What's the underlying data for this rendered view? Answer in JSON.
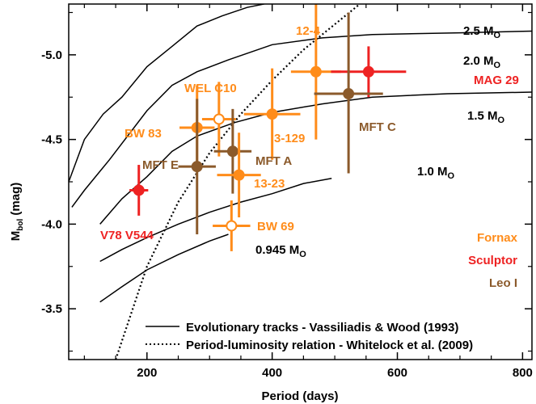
{
  "chart_data": {
    "type": "scatter",
    "xlabel": "Period (days)",
    "ylabel": "Mbol (mag)",
    "ylabel_main": "M",
    "ylabel_sub": "bol",
    "ylabel_rest": " (mag)",
    "xlim": [
      75,
      815
    ],
    "ylim": [
      -3.2,
      -5.3
    ],
    "xticks": [
      200,
      400,
      600,
      800
    ],
    "xtick_labels": [
      "200",
      "400",
      "600",
      "800"
    ],
    "yticks": [
      -3.5,
      -4.0,
      -4.5,
      -5.0
    ],
    "ytick_labels": [
      "-3.5",
      "-4.0",
      "-4.5",
      "-5.0"
    ],
    "colors": {
      "Fornax": "#ff8c1a",
      "Sculptor": "#ee2222",
      "Leo I": "#8b5a2b"
    },
    "galaxy_legend": [
      "Fornax",
      "Sculptor",
      "Leo I"
    ],
    "points": [
      {
        "label": "12-4",
        "galaxy": "Fornax",
        "period": 470,
        "mbol": -4.9,
        "xerr": 40,
        "yerr_up": 0.4,
        "yerr_down": 0.4,
        "filled": true
      },
      {
        "label": "MAG 29",
        "galaxy": "Sculptor",
        "period": 554,
        "mbol": -4.9,
        "xerr": 60,
        "yerr_up": 0.15,
        "yerr_down": 0.15,
        "filled": true
      },
      {
        "label": "MFT C",
        "galaxy": "Leo I",
        "period": 522,
        "mbol": -4.77,
        "xerr": 55,
        "yerr_up": 0.48,
        "yerr_down": 0.47,
        "filled": true
      },
      {
        "label": "3-129",
        "galaxy": "Fornax",
        "period": 400,
        "mbol": -4.65,
        "xerr": 45,
        "yerr_up": 0.27,
        "yerr_down": 0.27,
        "filled": true
      },
      {
        "label": "WEL C10",
        "galaxy": "Fornax",
        "period": 315,
        "mbol": -4.62,
        "xerr": 27,
        "yerr_up": 0.22,
        "yerr_down": 0.22,
        "filled": false
      },
      {
        "label": "BW 83",
        "galaxy": "Fornax",
        "period": 280,
        "mbol": -4.57,
        "xerr": 28,
        "yerr_up": 0.25,
        "yerr_down": 0.25,
        "filled": true
      },
      {
        "label": "MFT A",
        "galaxy": "Leo I",
        "period": 337,
        "mbol": -4.43,
        "xerr": 30,
        "yerr_up": 0.25,
        "yerr_down": 0.25,
        "filled": true
      },
      {
        "label": "MFT E",
        "galaxy": "Leo I",
        "period": 280,
        "mbol": -4.34,
        "xerr": 30,
        "yerr_up": 0.4,
        "yerr_down": 0.4,
        "filled": true
      },
      {
        "label": "13-23",
        "galaxy": "Fornax",
        "period": 347,
        "mbol": -4.29,
        "xerr": 35,
        "yerr_up": 0.25,
        "yerr_down": 0.25,
        "filled": true
      },
      {
        "label": "BW 69",
        "galaxy": "Fornax",
        "period": 335,
        "mbol": -3.99,
        "xerr": 30,
        "yerr_up": 0.15,
        "yerr_down": 0.15,
        "filled": false
      },
      {
        "label": "V78 V544",
        "galaxy": "Sculptor",
        "period": 187,
        "mbol": -4.2,
        "xerr": 15,
        "yerr_up": 0.15,
        "yerr_down": 0.15,
        "filled": true
      }
    ],
    "tracks": [
      {
        "label_main": "2.5 M",
        "label_sub": "O",
        "points": [
          [
            75,
            -4.25
          ],
          [
            100,
            -4.5
          ],
          [
            130,
            -4.65
          ],
          [
            160,
            -4.75
          ],
          [
            200,
            -4.93
          ],
          [
            240,
            -5.05
          ],
          [
            280,
            -5.17
          ],
          [
            320,
            -5.23
          ],
          [
            360,
            -5.28
          ],
          [
            400,
            -5.31
          ],
          [
            460,
            -5.32
          ],
          [
            560,
            -5.32
          ],
          [
            700,
            -5.32
          ],
          [
            815,
            -5.32
          ]
        ]
      },
      {
        "label_main": "2.0 M",
        "label_sub": "O",
        "points": [
          [
            80,
            -4.1
          ],
          [
            100,
            -4.2
          ],
          [
            140,
            -4.38
          ],
          [
            200,
            -4.67
          ],
          [
            240,
            -4.82
          ],
          [
            280,
            -4.9
          ],
          [
            330,
            -4.97
          ],
          [
            400,
            -5.06
          ],
          [
            480,
            -5.1
          ],
          [
            560,
            -5.12
          ],
          [
            700,
            -5.13
          ],
          [
            815,
            -5.14
          ]
        ]
      },
      {
        "label_main": "1.5 M",
        "label_sub": "O",
        "points": [
          [
            125,
            -4.0
          ],
          [
            160,
            -4.15
          ],
          [
            200,
            -4.28
          ],
          [
            240,
            -4.43
          ],
          [
            280,
            -4.52
          ],
          [
            340,
            -4.6
          ],
          [
            400,
            -4.66
          ],
          [
            480,
            -4.71
          ],
          [
            560,
            -4.75
          ],
          [
            680,
            -4.77
          ],
          [
            815,
            -4.78
          ]
        ]
      },
      {
        "label_main": "1.0 M",
        "label_sub": "O",
        "points": [
          [
            125,
            -3.78
          ],
          [
            160,
            -3.85
          ],
          [
            200,
            -3.92
          ],
          [
            250,
            -4.0
          ],
          [
            300,
            -4.07
          ],
          [
            350,
            -4.13
          ],
          [
            400,
            -4.18
          ],
          [
            450,
            -4.24
          ],
          [
            495,
            -4.27
          ]
        ]
      },
      {
        "label_main": "0.945 M",
        "label_sub": "O",
        "points": [
          [
            125,
            -3.54
          ],
          [
            160,
            -3.63
          ],
          [
            200,
            -3.73
          ],
          [
            250,
            -3.82
          ],
          [
            300,
            -3.9
          ],
          [
            330,
            -3.94
          ]
        ]
      }
    ],
    "pl_relation": [
      [
        150,
        -3.2
      ],
      [
        200,
        -3.75
      ],
      [
        250,
        -4.13
      ],
      [
        300,
        -4.42
      ],
      [
        350,
        -4.65
      ],
      [
        400,
        -4.85
      ],
      [
        450,
        -5.03
      ],
      [
        500,
        -5.18
      ],
      [
        540,
        -5.3
      ]
    ],
    "legend": [
      {
        "style": "solid",
        "label": "Evolutionary tracks - Vassiliadis & Wood (1993)"
      },
      {
        "style": "dotted",
        "label": "Period-luminosity relation - Whitelock et al. (2009)"
      }
    ]
  }
}
